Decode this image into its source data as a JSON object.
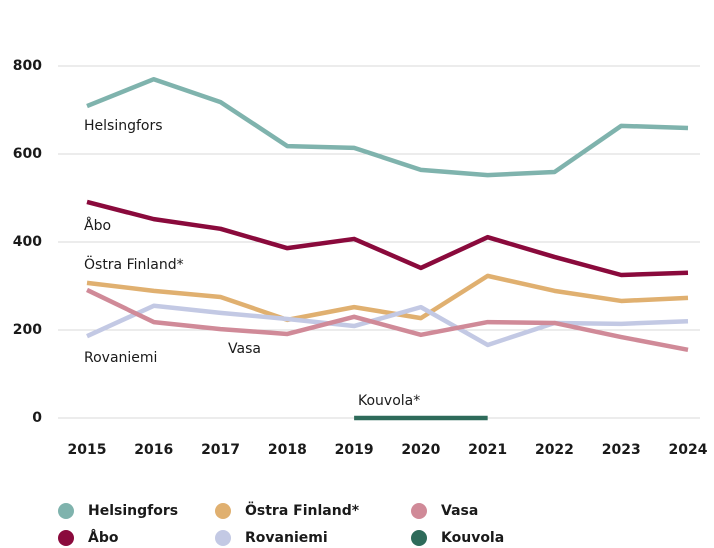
{
  "chart_data": {
    "type": "line",
    "x": [
      2015,
      2016,
      2017,
      2018,
      2019,
      2020,
      2021,
      2022,
      2023,
      2024
    ],
    "series": [
      {
        "name": "Helsingfors",
        "color": "#7fb3ad",
        "values": [
          709,
          770,
          718,
          618,
          614,
          564,
          552,
          559,
          664,
          659
        ]
      },
      {
        "name": "Åbo",
        "color": "#8a0a3c",
        "values": [
          491,
          452,
          430,
          386,
          407,
          341,
          411,
          366,
          325,
          330
        ]
      },
      {
        "name": "Östra Finland*",
        "color": "#e0b070",
        "values": [
          307,
          289,
          275,
          223,
          252,
          227,
          323,
          289,
          266,
          273
        ]
      },
      {
        "name": "Rovaniemi",
        "color": "#c3c9e4",
        "values": [
          186,
          255,
          239,
          225,
          209,
          252,
          166,
          216,
          214,
          220
        ]
      },
      {
        "name": "Vasa",
        "color": "#d08a98",
        "values": [
          291,
          218,
          202,
          191,
          230,
          189,
          218,
          216,
          184,
          155
        ]
      },
      {
        "name": "Kouvola",
        "color": "#2e6b5a",
        "values": [
          null,
          null,
          null,
          null,
          0,
          0,
          0,
          null,
          null,
          null
        ]
      }
    ],
    "annotations": [
      "Helsingfors",
      "Åbo",
      "Östra Finland*",
      "Rovaniemi",
      "Vasa",
      "Kouvola*"
    ],
    "xlim": [
      2015,
      2024
    ],
    "ylim": [
      0,
      800
    ],
    "yticks": [
      0,
      200,
      400,
      600,
      800
    ],
    "grid": true,
    "legend": "bottom"
  }
}
